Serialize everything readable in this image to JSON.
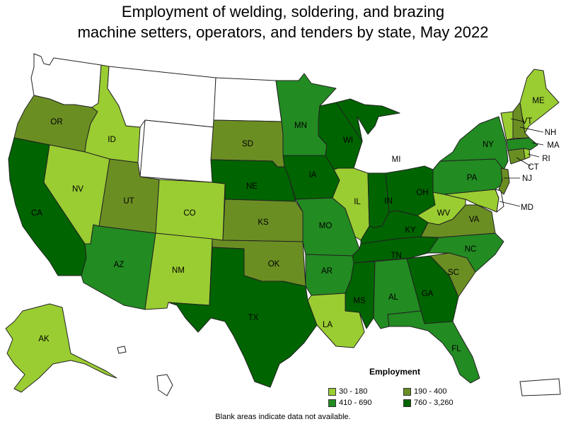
{
  "title_line1": "Employment of welding, soldering, and brazing",
  "title_line2": "machine setters, operators, and tenders by state, May 2022",
  "legend": {
    "title": "Employment",
    "items": [
      {
        "label": "30 - 180",
        "color": "#9acd32"
      },
      {
        "label": "190 - 400",
        "color": "#6b8e23"
      },
      {
        "label": "410 - 690",
        "color": "#228b22"
      },
      {
        "label": "760 - 3,260",
        "color": "#006400"
      }
    ]
  },
  "note": "Blank areas indicate data not available.",
  "states": {
    "WA": {
      "label": "",
      "class": "none"
    },
    "OR": {
      "label": "OR",
      "class": "190 - 400"
    },
    "CA": {
      "label": "CA",
      "class": "760 - 3,260"
    },
    "ID": {
      "label": "ID",
      "class": "30 - 180"
    },
    "NV": {
      "label": "NV",
      "class": "30 - 180"
    },
    "MT": {
      "label": "",
      "class": "none"
    },
    "WY": {
      "label": "",
      "class": "none"
    },
    "UT": {
      "label": "UT",
      "class": "190 - 400"
    },
    "AZ": {
      "label": "AZ",
      "class": "410 - 690"
    },
    "CO": {
      "label": "CO",
      "class": "30 - 180"
    },
    "NM": {
      "label": "NM",
      "class": "30 - 180"
    },
    "ND": {
      "label": "",
      "class": "none"
    },
    "SD": {
      "label": "SD",
      "class": "190 - 400"
    },
    "NE": {
      "label": "NE",
      "class": "760 - 3,260"
    },
    "KS": {
      "label": "KS",
      "class": "190 - 400"
    },
    "OK": {
      "label": "OK",
      "class": "190 - 400"
    },
    "TX": {
      "label": "TX",
      "class": "760 - 3,260"
    },
    "MN": {
      "label": "MN",
      "class": "410 - 690"
    },
    "IA": {
      "label": "IA",
      "class": "760 - 3,260"
    },
    "MO": {
      "label": "MO",
      "class": "410 - 690"
    },
    "AR": {
      "label": "AR",
      "class": "410 - 690"
    },
    "LA": {
      "label": "LA",
      "class": "30 - 180"
    },
    "WI": {
      "label": "WI",
      "class": "760 - 3,260"
    },
    "IL": {
      "label": "IL",
      "class": "30 - 180"
    },
    "MI": {
      "label": "MI",
      "class": "760 - 3,260"
    },
    "IN": {
      "label": "IN",
      "class": "760 - 3,260"
    },
    "OH": {
      "label": "OH",
      "class": "760 - 3,260"
    },
    "KY": {
      "label": "KY",
      "class": "760 - 3,260"
    },
    "TN": {
      "label": "TN",
      "class": "760 - 3,260"
    },
    "MS": {
      "label": "MS",
      "class": "760 - 3,260"
    },
    "AL": {
      "label": "AL",
      "class": "410 - 690"
    },
    "GA": {
      "label": "GA",
      "class": "760 - 3,260"
    },
    "FL": {
      "label": "FL",
      "class": "410 - 690"
    },
    "SC": {
      "label": "SC",
      "class": "190 - 400"
    },
    "NC": {
      "label": "NC",
      "class": "410 - 690"
    },
    "VA": {
      "label": "VA",
      "class": "190 - 400"
    },
    "WV": {
      "label": "WV",
      "class": "30 - 180"
    },
    "PA": {
      "label": "PA",
      "class": "410 - 690"
    },
    "NY": {
      "label": "NY",
      "class": "410 - 690"
    },
    "MD": {
      "label": "MD",
      "class": "30 - 180"
    },
    "DE": {
      "label": "",
      "class": "none"
    },
    "NJ": {
      "label": "NJ",
      "class": "190 - 400"
    },
    "CT": {
      "label": "CT",
      "class": "190 - 400"
    },
    "RI": {
      "label": "RI",
      "class": "30 - 180"
    },
    "MA": {
      "label": "MA",
      "class": "410 - 690"
    },
    "VT": {
      "label": "VT",
      "class": "30 - 180"
    },
    "NH": {
      "label": "NH",
      "class": "190 - 400"
    },
    "ME": {
      "label": "ME",
      "class": "30 - 180"
    },
    "AK": {
      "label": "AK",
      "class": "30 - 180"
    },
    "HI": {
      "label": "",
      "class": "none"
    },
    "PR": {
      "label": "",
      "class": "none"
    }
  }
}
